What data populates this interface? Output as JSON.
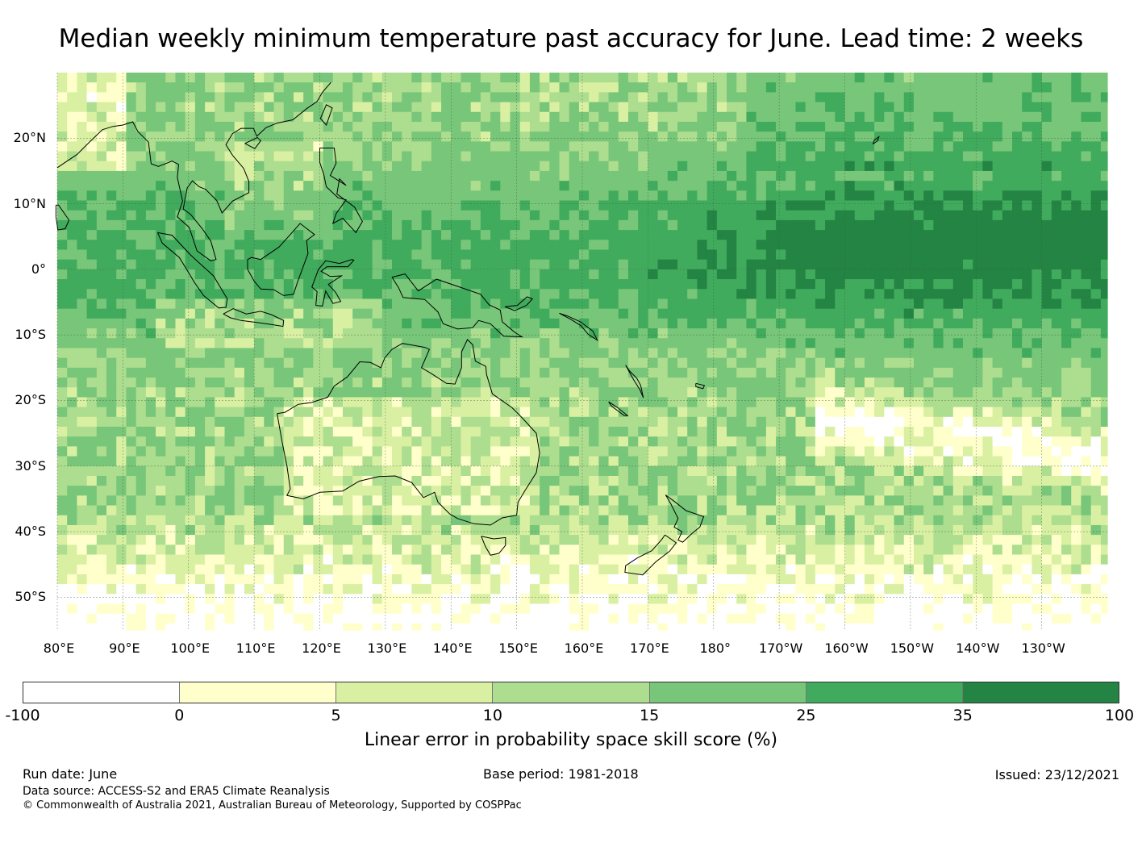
{
  "title": "Median weekly minimum temperature past accuracy for June. Lead time: 2 weeks",
  "map": {
    "extent": {
      "lon_min": 80,
      "lon_max": 240,
      "lat_min": -55,
      "lat_max": 30
    },
    "grid_on": true,
    "lat_ticks": [
      {
        "value": 20,
        "label": "20°N"
      },
      {
        "value": 10,
        "label": "10°N"
      },
      {
        "value": 0,
        "label": "0°"
      },
      {
        "value": -10,
        "label": "10°S"
      },
      {
        "value": -20,
        "label": "20°S"
      },
      {
        "value": -30,
        "label": "30°S"
      },
      {
        "value": -40,
        "label": "40°S"
      },
      {
        "value": -50,
        "label": "50°S"
      }
    ],
    "lon_ticks": [
      {
        "value": 80,
        "label": "80°E"
      },
      {
        "value": 90,
        "label": "90°E"
      },
      {
        "value": 100,
        "label": "100°E"
      },
      {
        "value": 110,
        "label": "110°E"
      },
      {
        "value": 120,
        "label": "120°E"
      },
      {
        "value": 130,
        "label": "130°E"
      },
      {
        "value": 140,
        "label": "140°E"
      },
      {
        "value": 150,
        "label": "150°E"
      },
      {
        "value": 160,
        "label": "160°E"
      },
      {
        "value": 170,
        "label": "170°E"
      },
      {
        "value": 180,
        "label": "180°"
      },
      {
        "value": 190,
        "label": "170°W"
      },
      {
        "value": 200,
        "label": "160°W"
      },
      {
        "value": 210,
        "label": "150°W"
      },
      {
        "value": 220,
        "label": "140°W"
      },
      {
        "value": 230,
        "label": "130°W"
      }
    ],
    "coastlines": {
      "australia": [
        [
          113.5,
          -22
        ],
        [
          114.2,
          -26
        ],
        [
          115,
          -30
        ],
        [
          115.5,
          -33.5
        ],
        [
          115,
          -34.5
        ],
        [
          117.5,
          -35
        ],
        [
          120,
          -34
        ],
        [
          123.5,
          -33.8
        ],
        [
          126,
          -32.3
        ],
        [
          129,
          -31.6
        ],
        [
          131.5,
          -31.5
        ],
        [
          134,
          -32.5
        ],
        [
          135.8,
          -34.8
        ],
        [
          137.5,
          -34
        ],
        [
          138,
          -35.5
        ],
        [
          139.8,
          -37.3
        ],
        [
          141,
          -38
        ],
        [
          143.5,
          -38.8
        ],
        [
          146,
          -39
        ],
        [
          147.8,
          -37.9
        ],
        [
          150,
          -37.5
        ],
        [
          150.2,
          -35.5
        ],
        [
          151.3,
          -33.7
        ],
        [
          153,
          -31
        ],
        [
          153.5,
          -28
        ],
        [
          153,
          -25
        ],
        [
          150.8,
          -22.6
        ],
        [
          149.3,
          -21.1
        ],
        [
          146.3,
          -19
        ],
        [
          145.4,
          -16
        ],
        [
          145.3,
          -14.8
        ],
        [
          143.7,
          -14
        ],
        [
          143.3,
          -11.5
        ],
        [
          142.5,
          -10.7
        ],
        [
          141.6,
          -12.6
        ],
        [
          141.6,
          -15
        ],
        [
          140.6,
          -17.5
        ],
        [
          139.3,
          -17.4
        ],
        [
          137,
          -15.9
        ],
        [
          135.5,
          -15
        ],
        [
          136.7,
          -12.2
        ],
        [
          136,
          -11.9
        ],
        [
          132.6,
          -11.3
        ],
        [
          131,
          -12.2
        ],
        [
          129.9,
          -13.5
        ],
        [
          129.3,
          -15
        ],
        [
          127.7,
          -14.2
        ],
        [
          126.1,
          -14.1
        ],
        [
          124.2,
          -16.4
        ],
        [
          122.2,
          -17.8
        ],
        [
          121.2,
          -19.5
        ],
        [
          118.8,
          -20.3
        ],
        [
          116.7,
          -20.6
        ],
        [
          114.7,
          -21.8
        ],
        [
          113.5,
          -22
        ]
      ],
      "tasmania": [
        [
          144.6,
          -40.7
        ],
        [
          146.5,
          -41.1
        ],
        [
          148.3,
          -40.9
        ],
        [
          148.3,
          -42.1
        ],
        [
          147.3,
          -43.3
        ],
        [
          146,
          -43.6
        ],
        [
          145.2,
          -42.2
        ],
        [
          144.6,
          -40.7
        ]
      ],
      "new_guinea": [
        [
          131,
          -1.2
        ],
        [
          133,
          -0.7
        ],
        [
          135,
          -3.3
        ],
        [
          137.8,
          -1.5
        ],
        [
          141,
          -2.6
        ],
        [
          144.5,
          -3.8
        ],
        [
          145.8,
          -5.4
        ],
        [
          147.5,
          -6.2
        ],
        [
          147.8,
          -8
        ],
        [
          149.7,
          -9.6
        ],
        [
          150.8,
          -10.3
        ],
        [
          148,
          -10.2
        ],
        [
          146,
          -8.3
        ],
        [
          144.2,
          -7.8
        ],
        [
          143.3,
          -8.9
        ],
        [
          141,
          -9.1
        ],
        [
          138.8,
          -8.3
        ],
        [
          138,
          -6.5
        ],
        [
          136,
          -4.6
        ],
        [
          132.7,
          -4.3
        ],
        [
          132,
          -2.8
        ],
        [
          131,
          -1.2
        ]
      ],
      "new_zealand_north": [
        [
          172.7,
          -34.4
        ],
        [
          174.3,
          -35.6
        ],
        [
          175.8,
          -36.8
        ],
        [
          178.5,
          -37.7
        ],
        [
          177.9,
          -39.3
        ],
        [
          176.8,
          -40.2
        ],
        [
          175.3,
          -41.6
        ],
        [
          174.6,
          -41.3
        ],
        [
          175.2,
          -40
        ],
        [
          174,
          -39.3
        ],
        [
          174.6,
          -38
        ],
        [
          173.5,
          -35.8
        ],
        [
          172.7,
          -34.4
        ]
      ],
      "new_zealand_south": [
        [
          172.6,
          -40.5
        ],
        [
          174.3,
          -41.7
        ],
        [
          173.3,
          -43
        ],
        [
          171.2,
          -44.6
        ],
        [
          169.2,
          -46.6
        ],
        [
          166.5,
          -46.2
        ],
        [
          166.6,
          -45.2
        ],
        [
          168.4,
          -44
        ],
        [
          170.6,
          -42.9
        ],
        [
          172.1,
          -41.2
        ],
        [
          172.6,
          -40.5
        ]
      ],
      "borneo": [
        [
          109,
          1.5
        ],
        [
          109.6,
          1.8
        ],
        [
          111,
          1.5
        ],
        [
          113.8,
          3.4
        ],
        [
          115.5,
          5.3
        ],
        [
          117,
          7
        ],
        [
          119.2,
          5.3
        ],
        [
          118,
          4.4
        ],
        [
          118.2,
          2.4
        ],
        [
          117.5,
          0.5
        ],
        [
          116.6,
          -2
        ],
        [
          116,
          -3.8
        ],
        [
          114.5,
          -4
        ],
        [
          113,
          -3.1
        ],
        [
          111,
          -3
        ],
        [
          110,
          -1.8
        ],
        [
          109,
          0
        ],
        [
          109,
          1.5
        ]
      ],
      "sumatra": [
        [
          95.3,
          5.6
        ],
        [
          97.5,
          5.2
        ],
        [
          100.3,
          2.2
        ],
        [
          103.8,
          -1
        ],
        [
          105.9,
          -4.5
        ],
        [
          105.7,
          -5.8
        ],
        [
          104.6,
          -5.9
        ],
        [
          102.3,
          -4
        ],
        [
          100.9,
          -2
        ],
        [
          100,
          -0.5
        ],
        [
          98.6,
          1.8
        ],
        [
          96,
          4
        ],
        [
          95.3,
          5.6
        ]
      ],
      "java": [
        [
          105.3,
          -6.8
        ],
        [
          106.8,
          -6
        ],
        [
          108.8,
          -6.8
        ],
        [
          111,
          -6.4
        ],
        [
          112.6,
          -6.9
        ],
        [
          114.5,
          -7.8
        ],
        [
          114.4,
          -8.7
        ],
        [
          112.6,
          -8.4
        ],
        [
          110.4,
          -8.1
        ],
        [
          108,
          -7.8
        ],
        [
          106.4,
          -7.4
        ],
        [
          105.3,
          -6.8
        ]
      ],
      "sulawesi": [
        [
          119.4,
          -5.5
        ],
        [
          119.6,
          -3.4
        ],
        [
          118.8,
          -2.7
        ],
        [
          119.8,
          0
        ],
        [
          120.9,
          1.3
        ],
        [
          123,
          0.9
        ],
        [
          124.9,
          1.5
        ],
        [
          125.2,
          1.4
        ],
        [
          124.3,
          0.4
        ],
        [
          121.1,
          0.4
        ],
        [
          120.2,
          -0.3
        ],
        [
          121.6,
          -1.1
        ],
        [
          123.3,
          -1
        ],
        [
          121.3,
          -2.3
        ],
        [
          122.4,
          -3.5
        ],
        [
          123.2,
          -4.9
        ],
        [
          122,
          -5.2
        ],
        [
          120.9,
          -3.3
        ],
        [
          120.4,
          -5.6
        ],
        [
          119.4,
          -5.5
        ]
      ],
      "malay_peninsula_indochina": [
        [
          98.5,
          16
        ],
        [
          98.3,
          14
        ],
        [
          99.1,
          10.4
        ],
        [
          98.3,
          8
        ],
        [
          100.1,
          6.4
        ],
        [
          101.3,
          2.8
        ],
        [
          103.4,
          1.3
        ],
        [
          104.2,
          1.5
        ],
        [
          103.4,
          4.3
        ],
        [
          102.1,
          6.2
        ],
        [
          100.3,
          8.4
        ],
        [
          99.2,
          9.2
        ],
        [
          99.8,
          12.4
        ],
        [
          100.6,
          13.5
        ],
        [
          101.6,
          12.6
        ],
        [
          102.6,
          12.2
        ],
        [
          104.3,
          10.5
        ],
        [
          105.1,
          8.6
        ],
        [
          106.7,
          10.4
        ],
        [
          109.2,
          11.7
        ],
        [
          109.2,
          13.4
        ],
        [
          108.4,
          15.4
        ],
        [
          106.7,
          17.4
        ],
        [
          105.7,
          19
        ],
        [
          106.7,
          20.7
        ],
        [
          108,
          21.5
        ],
        [
          109.9,
          21.5
        ],
        [
          110.4,
          20.3
        ],
        [
          111.8,
          21.6
        ],
        [
          113.5,
          22.3
        ],
        [
          115.9,
          22.8
        ],
        [
          118,
          24.5
        ],
        [
          119.6,
          25.6
        ],
        [
          120.4,
          27
        ],
        [
          121.7,
          28.5
        ]
      ],
      "bay_of_bengal_west": [
        [
          80,
          15.5
        ],
        [
          81.5,
          16.5
        ],
        [
          83,
          17.5
        ],
        [
          85,
          19.5
        ],
        [
          86.9,
          21.3
        ],
        [
          88.5,
          21.8
        ],
        [
          90,
          22
        ],
        [
          91.5,
          22.5
        ],
        [
          92.3,
          21
        ],
        [
          93.9,
          19.4
        ],
        [
          94.3,
          16.1
        ],
        [
          95.4,
          15.7
        ],
        [
          97.5,
          16.5
        ],
        [
          98.5,
          16
        ]
      ],
      "philippines": [
        [
          120,
          18.5
        ],
        [
          122.2,
          18.5
        ],
        [
          122.5,
          16.2
        ],
        [
          121.6,
          14.3
        ],
        [
          124,
          12.8
        ],
        [
          123,
          13.8
        ],
        [
          122.6,
          11.5
        ],
        [
          125.3,
          9.5
        ],
        [
          126.5,
          7.3
        ],
        [
          125.5,
          5.6
        ],
        [
          123.5,
          7.8
        ],
        [
          122,
          7
        ],
        [
          122.5,
          8.5
        ],
        [
          124,
          10.6
        ],
        [
          122.8,
          10.9
        ],
        [
          121,
          12.6
        ],
        [
          120.6,
          14.5
        ],
        [
          120,
          16.3
        ],
        [
          120,
          18.5
        ]
      ],
      "taiwan": [
        [
          120.1,
          23
        ],
        [
          121,
          25.1
        ],
        [
          121.9,
          24.6
        ],
        [
          121,
          22
        ],
        [
          120.1,
          23
        ]
      ],
      "hainan": [
        [
          108.6,
          19.2
        ],
        [
          110.5,
          20.1
        ],
        [
          111,
          19.6
        ],
        [
          110.1,
          18.4
        ],
        [
          108.6,
          19.2
        ]
      ],
      "sri_lanka": [
        [
          79.8,
          9.8
        ],
        [
          80.2,
          9.8
        ],
        [
          81.8,
          7.5
        ],
        [
          81.2,
          6.2
        ],
        [
          80.1,
          6
        ],
        [
          79.8,
          8
        ],
        [
          79.8,
          9.8
        ]
      ],
      "solomon_islands": [
        [
          156.5,
          -6.7
        ],
        [
          158.2,
          -7.6
        ],
        [
          159.8,
          -8.6
        ],
        [
          160.9,
          -9.9
        ],
        [
          162.3,
          -10.8
        ],
        [
          161.6,
          -9.4
        ],
        [
          159.7,
          -8
        ],
        [
          157.7,
          -7.1
        ],
        [
          156.5,
          -6.7
        ]
      ],
      "new_britain": [
        [
          148.2,
          -5.7
        ],
        [
          150.1,
          -5.5
        ],
        [
          151.6,
          -4.2
        ],
        [
          152.4,
          -4.5
        ],
        [
          151.5,
          -5.5
        ],
        [
          149.7,
          -6.3
        ],
        [
          148.2,
          -5.7
        ]
      ],
      "vanuatu": [
        [
          166.6,
          -14.6
        ],
        [
          167.2,
          -15.5
        ],
        [
          168.3,
          -16.6
        ],
        [
          168.9,
          -17.7
        ],
        [
          169.3,
          -19.6
        ],
        [
          168.8,
          -18.4
        ],
        [
          167.8,
          -16.8
        ],
        [
          166.6,
          -14.6
        ]
      ],
      "new_caledonia": [
        [
          164,
          -20.2
        ],
        [
          165.4,
          -21.1
        ],
        [
          166.9,
          -22.3
        ],
        [
          166.4,
          -22.3
        ],
        [
          164.5,
          -20.9
        ],
        [
          164,
          -20.2
        ]
      ],
      "fiji": [
        [
          177.3,
          -17.4
        ],
        [
          178.6,
          -17.7
        ],
        [
          178.4,
          -18.2
        ],
        [
          177.3,
          -17.9
        ],
        [
          177.3,
          -17.4
        ]
      ],
      "hawaii": [
        [
          204.3,
          19.1
        ],
        [
          205,
          19.6
        ],
        [
          205.2,
          20.2
        ],
        [
          204.5,
          19.7
        ],
        [
          204.3,
          19.1
        ]
      ]
    }
  },
  "colorbar": {
    "segments": [
      {
        "from": -100,
        "to": 0,
        "color": "#ffffff"
      },
      {
        "from": 0,
        "to": 5,
        "color": "#ffffcc"
      },
      {
        "from": 5,
        "to": 10,
        "color": "#d9f0a3"
      },
      {
        "from": 10,
        "to": 15,
        "color": "#addd8e"
      },
      {
        "from": 15,
        "to": 25,
        "color": "#78c679"
      },
      {
        "from": 25,
        "to": 35,
        "color": "#41ab5d"
      },
      {
        "from": 35,
        "to": 100,
        "color": "#238443"
      }
    ],
    "ticks": [
      "-100",
      "0",
      "5",
      "10",
      "15",
      "25",
      "35",
      "100"
    ],
    "label": "Linear error in probability space skill score (%)"
  },
  "footer": {
    "run_date": "Run date: June",
    "base_period": "Base period: 1981-2018",
    "issued": "Issued: 23/12/2021",
    "data_source": "Data source: ACCESS-S2 and ERA5 Climate Reanalysis",
    "copyright": "© Commonwealth of Australia 2021, Australian Bureau of Meteorology, Supported by COSPPac"
  }
}
